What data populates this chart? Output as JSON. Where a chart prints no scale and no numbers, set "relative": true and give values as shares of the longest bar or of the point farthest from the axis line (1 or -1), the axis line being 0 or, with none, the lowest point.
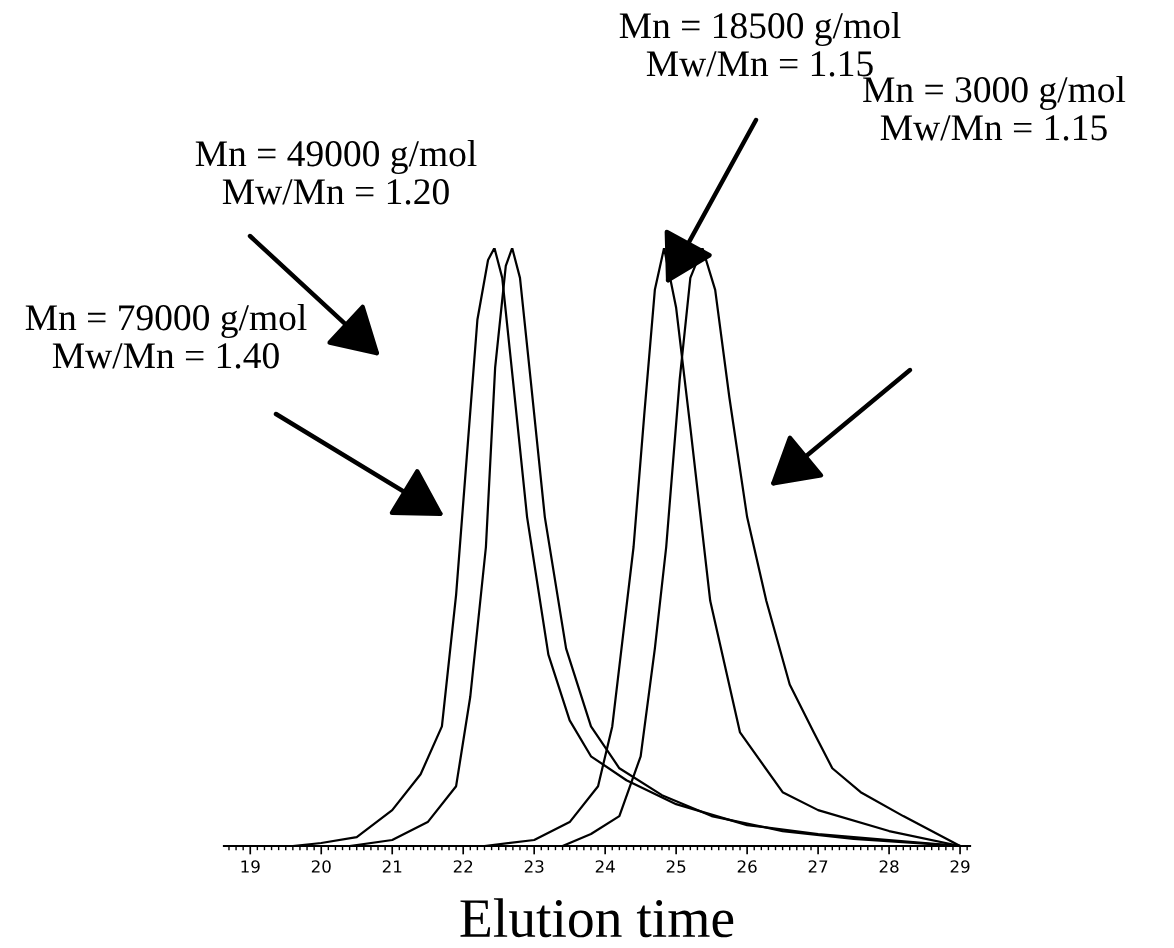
{
  "chart_data": {
    "type": "line",
    "relative": true,
    "xlabel": "Elution time",
    "xlim": [
      18.63,
      29.14
    ],
    "xticks": [
      19,
      20,
      21,
      22,
      23,
      24,
      25,
      26,
      27,
      28,
      29
    ],
    "grid": false,
    "legend": false,
    "marker": "none",
    "line_style": "solid",
    "tick_labels": "x",
    "series": [
      {
        "color": "#000000",
        "x": [
          19.6,
          20,
          20.5,
          21,
          21.4,
          21.7,
          21.9,
          22.05,
          22.2,
          22.35,
          22.44,
          22.55,
          22.7,
          22.9,
          23.2,
          23.5,
          23.8,
          24.3,
          25,
          26,
          27,
          28,
          29
        ],
        "values": [
          0,
          0.005,
          0.015,
          0.06,
          0.12,
          0.2,
          0.42,
          0.65,
          0.88,
          0.98,
          1,
          0.95,
          0.78,
          0.55,
          0.32,
          0.21,
          0.15,
          0.11,
          0.07,
          0.035,
          0.02,
          0.01,
          0
        ]
      },
      {
        "color": "#000000",
        "x": [
          20.4,
          21,
          21.5,
          21.9,
          22.1,
          22.32,
          22.45,
          22.6,
          22.69,
          22.8,
          22.95,
          23.15,
          23.45,
          23.8,
          24.2,
          24.8,
          25.5,
          26.5,
          27.5,
          29
        ],
        "values": [
          0,
          0.01,
          0.04,
          0.1,
          0.25,
          0.5,
          0.8,
          0.97,
          1,
          0.95,
          0.78,
          0.55,
          0.33,
          0.2,
          0.13,
          0.085,
          0.05,
          0.025,
          0.012,
          0
        ]
      },
      {
        "color": "#000000",
        "x": [
          22.3,
          23,
          23.5,
          23.9,
          24.1,
          24.25,
          24.4,
          24.55,
          24.7,
          24.83,
          25.0,
          25.2,
          25.48,
          25.9,
          26.5,
          27,
          28,
          29
        ],
        "values": [
          0,
          0.01,
          0.04,
          0.1,
          0.2,
          0.35,
          0.5,
          0.72,
          0.93,
          1,
          0.9,
          0.7,
          0.41,
          0.19,
          0.09,
          0.06,
          0.025,
          0
        ]
      },
      {
        "color": "#000000",
        "x": [
          23.4,
          23.8,
          24.2,
          24.5,
          24.7,
          24.86,
          25.05,
          25.2,
          25.37,
          25.55,
          25.75,
          26.0,
          26.27,
          26.6,
          26.94,
          27.2,
          27.6,
          28.2,
          29
        ],
        "values": [
          0,
          0.02,
          0.05,
          0.15,
          0.33,
          0.5,
          0.78,
          0.95,
          1,
          0.93,
          0.75,
          0.55,
          0.41,
          0.27,
          0.19,
          0.13,
          0.09,
          0.05,
          0
        ]
      }
    ],
    "annotations": [
      "Mn = 79000 g/mol\nMw/Mn = 1.40",
      "Mn = 49000 g/mol\nMw/Mn = 1.20",
      "Mn = 18500 g/mol\nMw/Mn = 1.15",
      "Mn = 3000 g/mol\nMw/Mn = 1.15"
    ]
  }
}
